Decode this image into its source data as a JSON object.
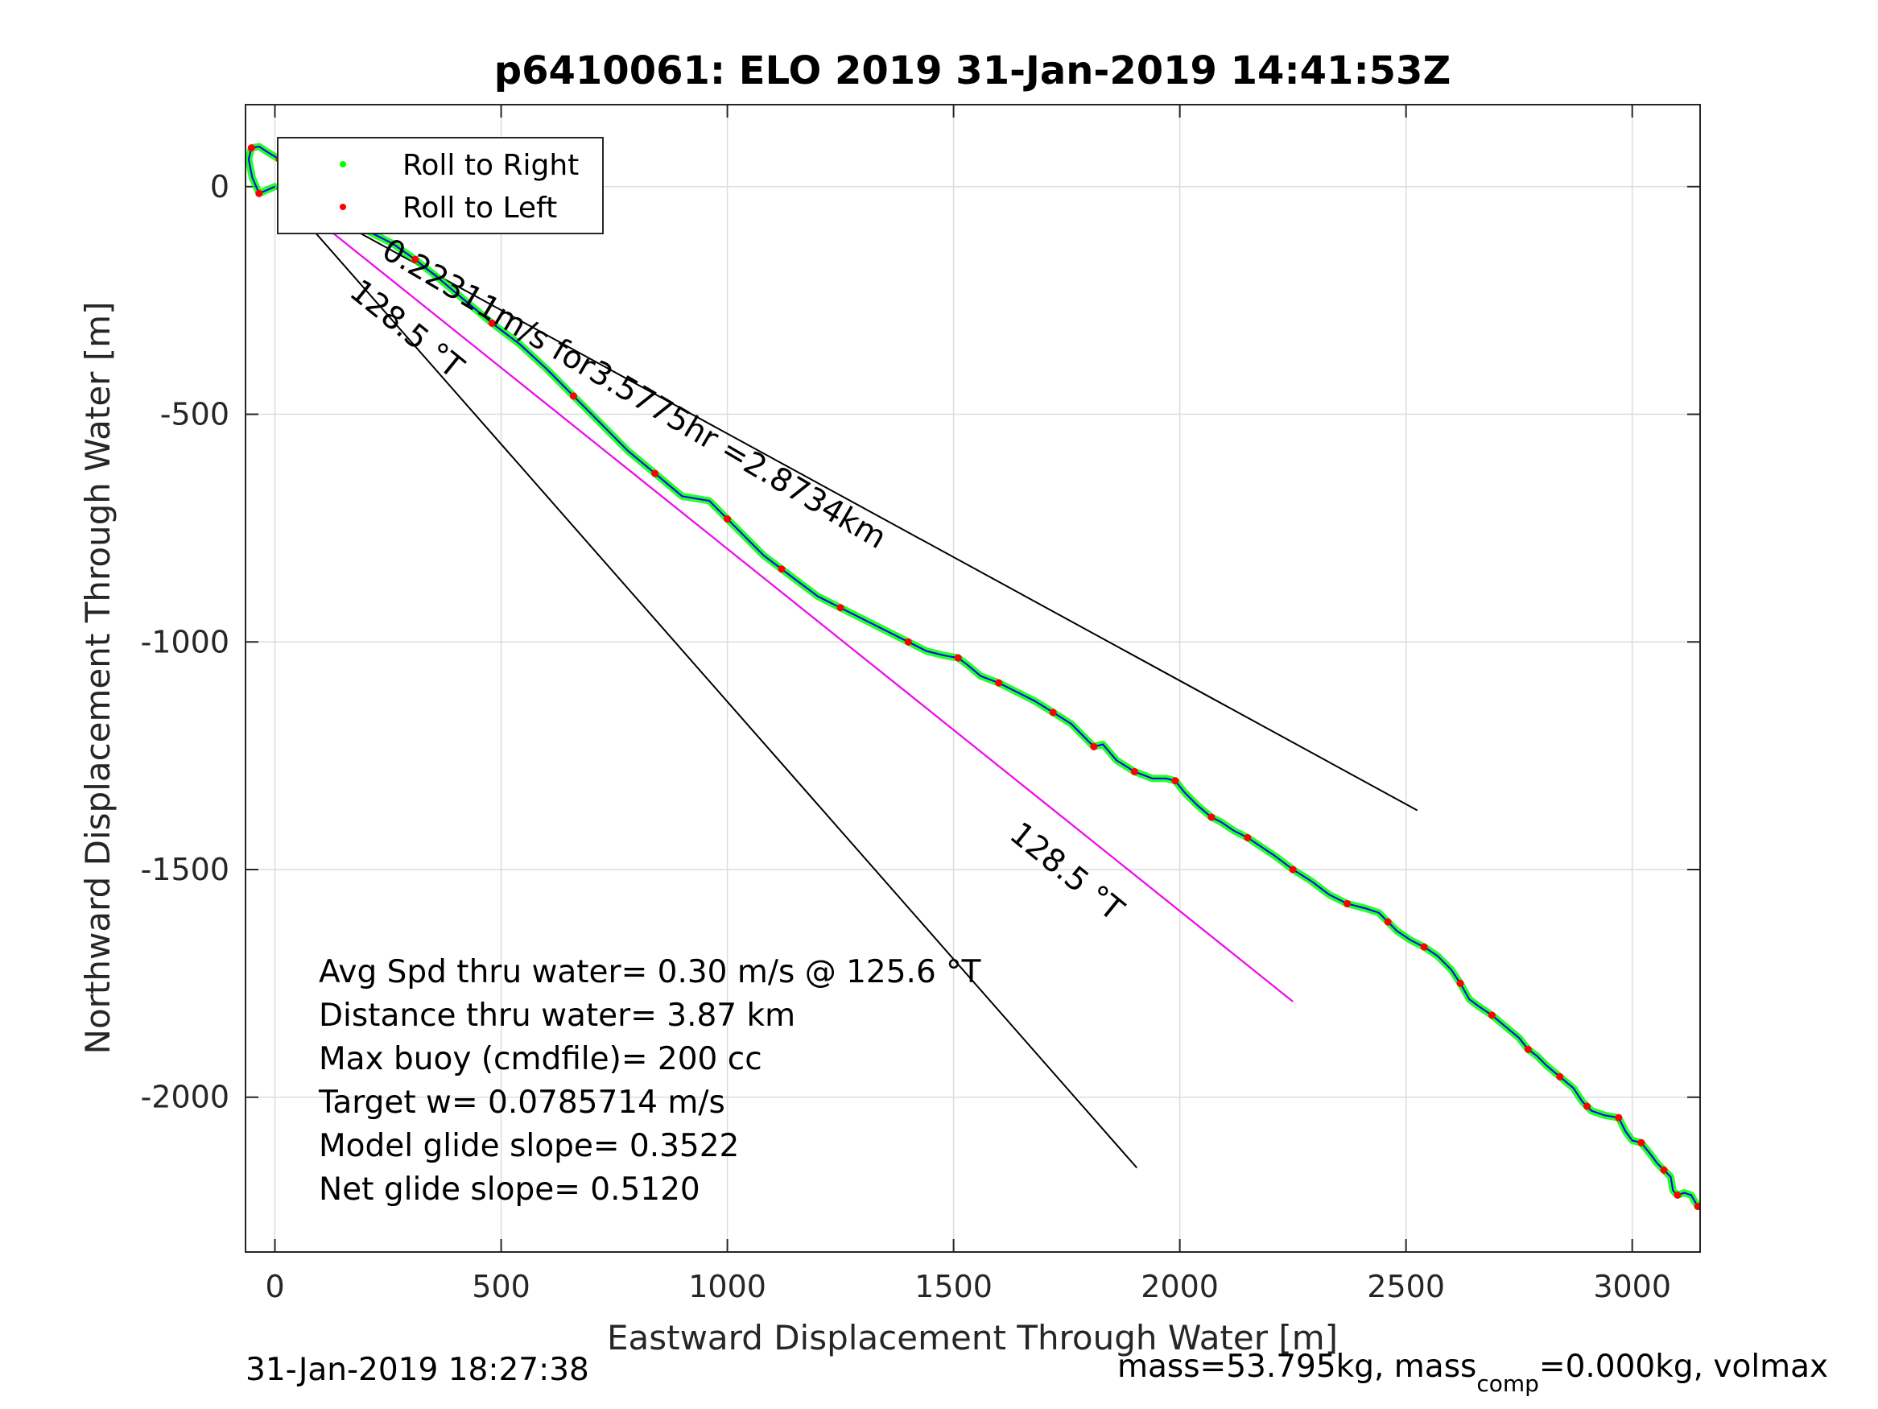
{
  "chart_data": {
    "type": "line",
    "title": "p6410061: ELO 2019 31-Jan-2019 14:41:53Z",
    "xlabel": "Eastward Displacement Through Water [m]",
    "ylabel": "Northward Displacement Through Water [m]",
    "xlim": [
      -65,
      3150
    ],
    "ylim": [
      -2340,
      180
    ],
    "xticks": [
      0,
      500,
      1000,
      1500,
      2000,
      2500,
      3000
    ],
    "yticks": [
      0,
      -500,
      -1000,
      -1500,
      -2000
    ],
    "grid": true,
    "legend": {
      "placement": "top-left",
      "entries": [
        {
          "label": "Roll to Right",
          "color": "#00ff00"
        },
        {
          "label": "Roll to Left",
          "color": "#ff0000"
        }
      ]
    },
    "track": {
      "color": "#0000ff",
      "x": [
        0,
        -35,
        -50,
        -58,
        -52,
        -35,
        -15,
        10,
        30,
        60,
        100,
        130,
        150,
        175,
        210,
        260,
        310,
        360,
        420,
        480,
        540,
        600,
        660,
        720,
        780,
        840,
        900,
        960,
        1000,
        1040,
        1080,
        1120,
        1160,
        1200,
        1250,
        1300,
        1350,
        1400,
        1440,
        1480,
        1510,
        1530,
        1560,
        1600,
        1640,
        1680,
        1720,
        1760,
        1790,
        1810,
        1830,
        1860,
        1900,
        1940,
        1970,
        1990,
        2010,
        2040,
        2070,
        2090,
        2120,
        2150,
        2180,
        2210,
        2250,
        2290,
        2330,
        2370,
        2410,
        2440,
        2460,
        2480,
        2510,
        2540,
        2570,
        2600,
        2620,
        2640,
        2660,
        2690,
        2720,
        2750,
        2770,
        2790,
        2810,
        2840,
        2870,
        2890,
        2900,
        2910,
        2940,
        2970,
        2985,
        3000,
        3020,
        3040,
        3055,
        3070,
        3085,
        3090,
        3100,
        3115,
        3130,
        3145
      ],
      "y": [
        0,
        -15,
        20,
        60,
        85,
        88,
        75,
        60,
        40,
        5,
        -10,
        -30,
        -55,
        -80,
        -100,
        -125,
        -160,
        -200,
        -250,
        -300,
        -345,
        -400,
        -460,
        -520,
        -580,
        -630,
        -680,
        -690,
        -730,
        -770,
        -810,
        -840,
        -870,
        -900,
        -925,
        -950,
        -975,
        -1000,
        -1020,
        -1030,
        -1035,
        -1050,
        -1075,
        -1090,
        -1110,
        -1130,
        -1155,
        -1180,
        -1210,
        -1230,
        -1225,
        -1260,
        -1285,
        -1300,
        -1300,
        -1305,
        -1330,
        -1360,
        -1385,
        -1395,
        -1415,
        -1430,
        -1450,
        -1470,
        -1500,
        -1525,
        -1555,
        -1575,
        -1585,
        -1595,
        -1615,
        -1635,
        -1655,
        -1670,
        -1690,
        -1720,
        -1750,
        -1785,
        -1800,
        -1820,
        -1845,
        -1870,
        -1895,
        -1910,
        -1930,
        -1955,
        -1980,
        -2010,
        -2020,
        -2030,
        -2040,
        -2045,
        -2075,
        -2095,
        -2100,
        -2125,
        -2145,
        -2160,
        -2175,
        -2205,
        -2215,
        -2210,
        -2215,
        -2240
      ]
    },
    "lines": [
      {
        "x": [
          0,
          2525
        ],
        "y": [
          0,
          -1370
        ],
        "color": "#000000"
      },
      {
        "x": [
          0,
          1905
        ],
        "y": [
          0,
          -2155
        ],
        "color": "#000000"
      },
      {
        "x": [
          0,
          2250
        ],
        "y": [
          0,
          -1790
        ],
        "color": "#000000"
      },
      {
        "x": [
          0,
          2250
        ],
        "y": [
          0,
          -1790
        ],
        "color": "#ff00ff"
      }
    ],
    "annotations": {
      "current_label": "0.22311m/s for3.5775hr =2.8734km",
      "heading_label_1": "128.5 °T",
      "heading_label_2": "128.5 °T"
    },
    "stats": [
      "Avg Spd thru water=  0.30 m/s @ 125.6 °T",
      "Distance thru water=  3.87 km",
      "Max buoy (cmdfile)= 200 cc",
      "Target w= 0.0785714 m/s",
      "Model glide slope= 0.3522",
      "Net glide slope= 0.5120"
    ],
    "footer": {
      "left": "31-Jan-2019 18:27:38",
      "right_prefix": "mass=53.795kg, mass",
      "right_sub": "comp",
      "right_suffix": "=0.000kg, volmax"
    }
  }
}
